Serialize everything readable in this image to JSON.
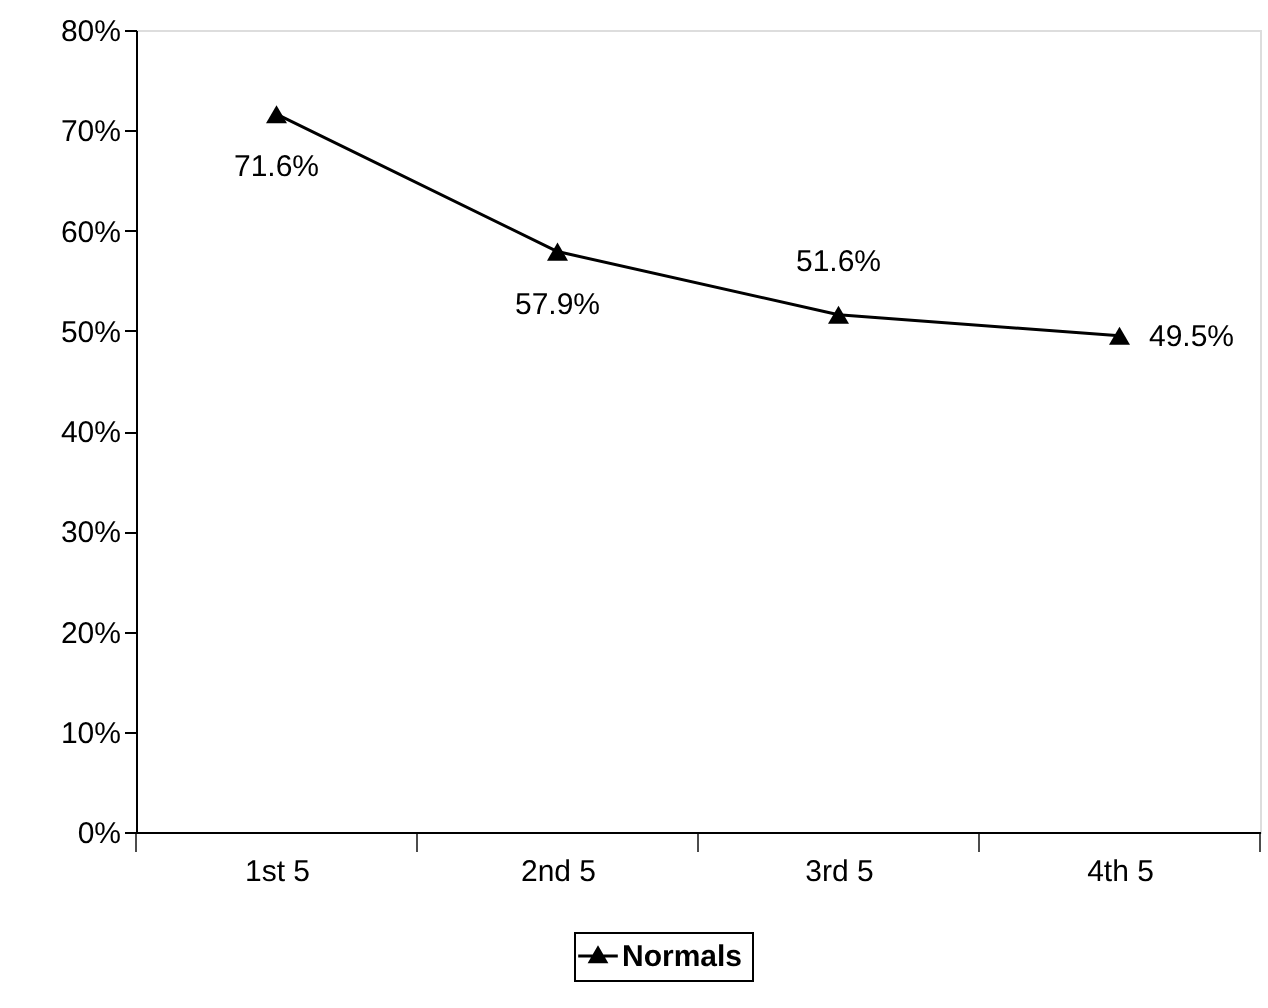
{
  "chart_data": {
    "type": "line",
    "categories": [
      "1st 5",
      "2nd 5",
      "3rd 5",
      "4th 5"
    ],
    "series": [
      {
        "name": "Normals",
        "color": "#000000",
        "values": [
          71.6,
          57.9,
          51.6,
          49.5
        ],
        "value_labels": [
          "71.6%",
          "57.9%",
          "51.6%",
          "49.5%"
        ]
      }
    ],
    "ylim": [
      0,
      80
    ],
    "yticks": [
      {
        "value": 0,
        "label": "0%"
      },
      {
        "value": 10,
        "label": "10%"
      },
      {
        "value": 20,
        "label": "20%"
      },
      {
        "value": 30,
        "label": "30%"
      },
      {
        "value": 40,
        "label": "40%"
      },
      {
        "value": 50,
        "label": "50%"
      },
      {
        "value": 60,
        "label": "60%"
      },
      {
        "value": 70,
        "label": "70%"
      },
      {
        "value": 80,
        "label": "80%"
      }
    ],
    "marker": "triangle",
    "line_style": "solid",
    "grid": false,
    "legend": "bottom"
  }
}
